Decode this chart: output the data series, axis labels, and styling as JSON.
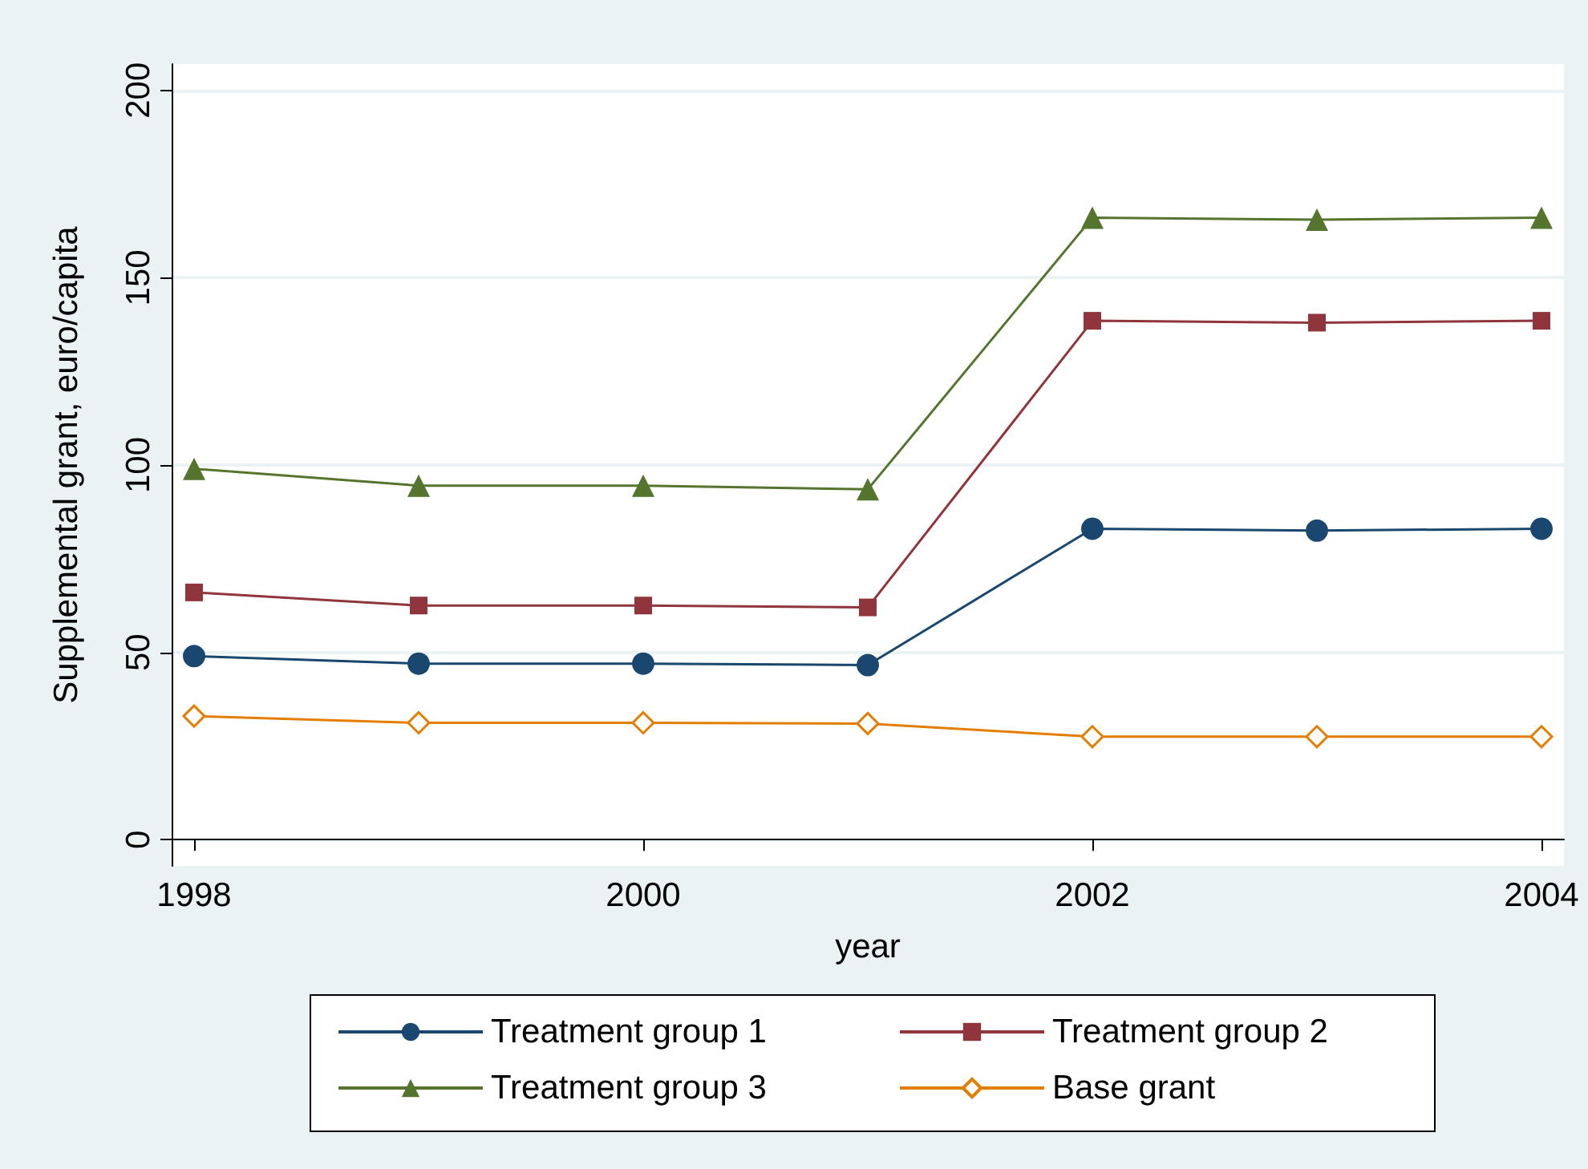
{
  "chart_data": {
    "type": "line",
    "xlabel": "year",
    "ylabel": "Supplemental grant, euro/capita",
    "x": [
      1998,
      1999,
      2000,
      2001,
      2002,
      2003,
      2004
    ],
    "series": [
      {
        "name": "Treatment group 1",
        "color": "#1a476f",
        "marker": "circle",
        "values": [
          49,
          47,
          47,
          46.6,
          83,
          82.5,
          83
        ]
      },
      {
        "name": "Treatment group 2",
        "color": "#90353b",
        "marker": "square",
        "values": [
          66,
          62.5,
          62.5,
          62,
          138.5,
          138,
          138.5
        ]
      },
      {
        "name": "Treatment group 3",
        "color": "#55752f",
        "marker": "triangle",
        "values": [
          99,
          94.5,
          94.5,
          93.5,
          166,
          165.5,
          166
        ]
      },
      {
        "name": "Base grant",
        "color": "#e37e00",
        "marker": "diamond",
        "values": [
          33,
          31.2,
          31.2,
          31,
          27.5,
          27.5,
          27.5
        ]
      }
    ],
    "xlim": [
      1997.9,
      2004.1
    ],
    "xticks": [
      1998,
      2000,
      2002,
      2004
    ],
    "ylim": [
      -7,
      207
    ],
    "yticks": [
      0,
      50,
      100,
      150,
      200
    ],
    "grid": "y",
    "legend": "bottom"
  }
}
